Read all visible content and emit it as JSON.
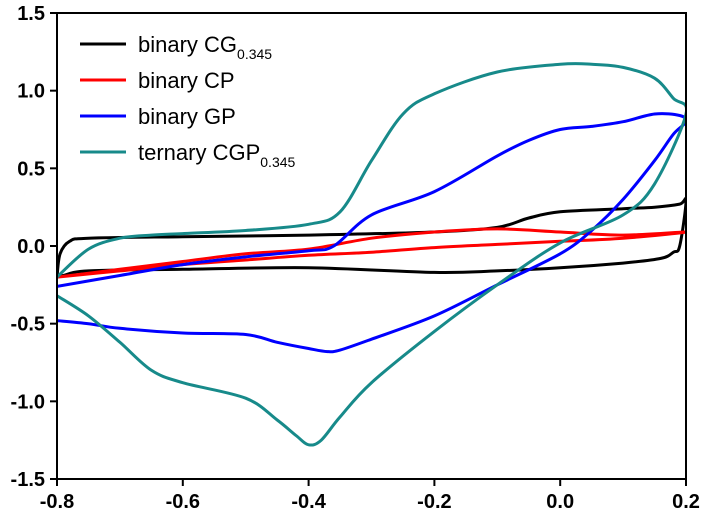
{
  "chart_data": {
    "type": "line",
    "title": "",
    "xlabel": "",
    "ylabel": "",
    "xlim": [
      -0.8,
      0.2
    ],
    "ylim": [
      -1.5,
      1.5
    ],
    "x_ticks": [
      -0.8,
      -0.6,
      -0.4,
      -0.2,
      0.0,
      0.2
    ],
    "x_tick_labels": [
      "-0.8",
      "-0.6",
      "-0.4",
      "-0.2",
      "0.0",
      "0.2"
    ],
    "y_ticks": [
      -1.5,
      -1.0,
      -0.5,
      0.0,
      0.5,
      1.0,
      1.5
    ],
    "y_tick_labels": [
      "-1.5",
      "-1.0",
      "-0.5",
      "0.0",
      "0.5",
      "1.0",
      "1.5"
    ],
    "grid": false,
    "legend": "top-left",
    "series": [
      {
        "name": "binary CG",
        "name_sub": "0.345",
        "color": "#000000",
        "x": [
          -0.8,
          -0.795,
          -0.78,
          -0.75,
          -0.6,
          -0.4,
          -0.2,
          -0.1,
          -0.05,
          0.0,
          0.1,
          0.15,
          0.19,
          0.2,
          0.19,
          0.18,
          0.16,
          0.1,
          0.0,
          -0.1,
          -0.2,
          -0.4,
          -0.6,
          -0.75,
          -0.79,
          -0.8
        ],
        "y": [
          -0.2,
          -0.05,
          0.03,
          0.05,
          0.06,
          0.07,
          0.09,
          0.12,
          0.18,
          0.22,
          0.24,
          0.25,
          0.27,
          0.29,
          0.0,
          -0.04,
          -0.08,
          -0.11,
          -0.14,
          -0.16,
          -0.17,
          -0.14,
          -0.15,
          -0.16,
          -0.19,
          -0.2
        ]
      },
      {
        "name": "binary CP",
        "color": "#ff0000",
        "x": [
          -0.8,
          -0.7,
          -0.6,
          -0.5,
          -0.4,
          -0.3,
          -0.2,
          -0.1,
          0.0,
          0.1,
          0.2,
          0.1,
          0.0,
          -0.1,
          -0.2,
          -0.3,
          -0.4,
          -0.5,
          -0.6,
          -0.7,
          -0.8
        ],
        "y": [
          -0.2,
          -0.15,
          -0.1,
          -0.05,
          -0.02,
          0.05,
          0.09,
          0.11,
          0.09,
          0.07,
          0.09,
          0.05,
          0.03,
          0.01,
          -0.01,
          -0.04,
          -0.06,
          -0.09,
          -0.12,
          -0.16,
          -0.2
        ]
      },
      {
        "name": "binary GP",
        "color": "#0000ff",
        "x": [
          -0.8,
          -0.75,
          -0.7,
          -0.6,
          -0.5,
          -0.45,
          -0.4,
          -0.37,
          -0.35,
          -0.3,
          -0.2,
          -0.1,
          0.0,
          0.05,
          0.1,
          0.15,
          0.18,
          0.2,
          0.19,
          0.15,
          0.1,
          0.05,
          0.0,
          -0.05,
          -0.1,
          -0.2,
          -0.3,
          -0.36,
          -0.4,
          -0.5,
          -0.6,
          -0.7,
          -0.8
        ],
        "y": [
          -0.48,
          -0.5,
          -0.53,
          -0.56,
          -0.57,
          -0.62,
          -0.66,
          -0.68,
          -0.67,
          -0.6,
          -0.45,
          -0.25,
          -0.05,
          0.1,
          0.3,
          0.55,
          0.72,
          0.8,
          0.84,
          0.85,
          0.8,
          0.77,
          0.75,
          0.68,
          0.58,
          0.35,
          0.2,
          0.0,
          -0.03,
          -0.07,
          -0.12,
          -0.19,
          -0.26
        ]
      },
      {
        "name": "ternary CGP",
        "name_sub": "0.345",
        "color": "#178a8a",
        "x": [
          -0.8,
          -0.75,
          -0.7,
          -0.65,
          -0.6,
          -0.5,
          -0.45,
          -0.42,
          -0.4,
          -0.38,
          -0.35,
          -0.3,
          -0.2,
          -0.1,
          0.0,
          0.1,
          0.15,
          0.2,
          0.18,
          0.15,
          0.1,
          0.05,
          0.0,
          -0.1,
          -0.2,
          -0.25,
          -0.3,
          -0.35,
          -0.4,
          -0.5,
          -0.6,
          -0.65,
          -0.7,
          -0.75,
          -0.8
        ],
        "y": [
          -0.32,
          -0.45,
          -0.62,
          -0.8,
          -0.88,
          -0.98,
          -1.12,
          -1.22,
          -1.28,
          -1.25,
          -1.1,
          -0.88,
          -0.55,
          -0.25,
          0.02,
          0.2,
          0.4,
          0.85,
          0.95,
          1.08,
          1.15,
          1.17,
          1.17,
          1.12,
          0.98,
          0.85,
          0.55,
          0.22,
          0.14,
          0.1,
          0.08,
          0.07,
          0.05,
          -0.02,
          -0.2
        ]
      }
    ]
  }
}
